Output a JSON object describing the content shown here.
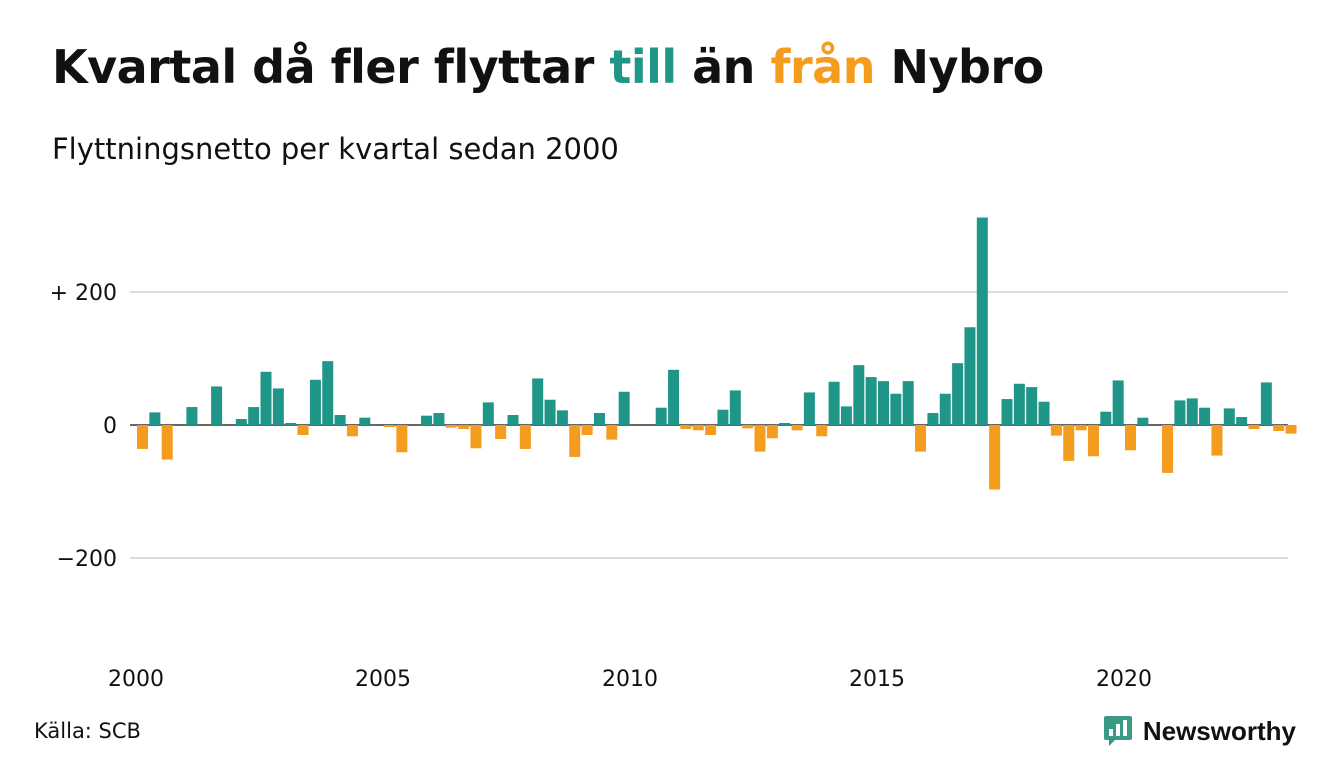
{
  "header": {
    "title_part1": "Kvartal då fler flyttar ",
    "title_highlight1": "till",
    "title_part2": " än ",
    "title_highlight2": "från",
    "title_part3": " Nybro",
    "subtitle": "Flyttningsnetto per kvartal sedan 2000"
  },
  "footer": {
    "source": "Källa: SCB",
    "brand_name": "Newsworthy",
    "brand_icon": "bar-chart-speech-bubble-icon"
  },
  "colors": {
    "positive": "#1f9688",
    "negative": "#f49c1d",
    "brand": "#3b9a86",
    "grid": "#dddddd",
    "zero_line": "#333333",
    "text": "#111111"
  },
  "chart_data": {
    "type": "bar",
    "title": "Kvartal då fler flyttar till än från Nybro",
    "subtitle": "Flyttningsnetto per kvartal sedan 2000",
    "xlabel": "",
    "ylabel": "",
    "x_start": "2000 Q1",
    "x_ticks": [
      "2000",
      "2005",
      "2010",
      "2015",
      "2020"
    ],
    "y_ticks": [
      {
        "value": 200,
        "label": "+ 200"
      },
      {
        "value": 0,
        "label": "0"
      },
      {
        "value": -200,
        "label": "−200"
      }
    ],
    "ylim": [
      -350,
      330
    ],
    "grid": true,
    "legend": "none",
    "values": [
      -36,
      19,
      -52,
      0,
      27,
      0,
      58,
      0,
      9,
      27,
      80,
      55,
      3,
      -15,
      68,
      96,
      15,
      -17,
      11,
      0,
      -3,
      -41,
      0,
      14,
      18,
      -4,
      -6,
      -35,
      34,
      -21,
      15,
      -36,
      70,
      38,
      22,
      -48,
      -15,
      18,
      -22,
      50,
      0,
      0,
      26,
      83,
      -6,
      -8,
      -15,
      23,
      52,
      -5,
      -40,
      -20,
      3,
      -8,
      49,
      -17,
      65,
      28,
      90,
      72,
      66,
      47,
      66,
      -40,
      18,
      47,
      93,
      147,
      312,
      -97,
      39,
      62,
      57,
      35,
      -16,
      -54,
      -8,
      -47,
      20,
      67,
      -38,
      11,
      0,
      -72,
      37,
      40,
      26,
      -46,
      25,
      12,
      -6,
      64,
      -9,
      -13
    ]
  }
}
